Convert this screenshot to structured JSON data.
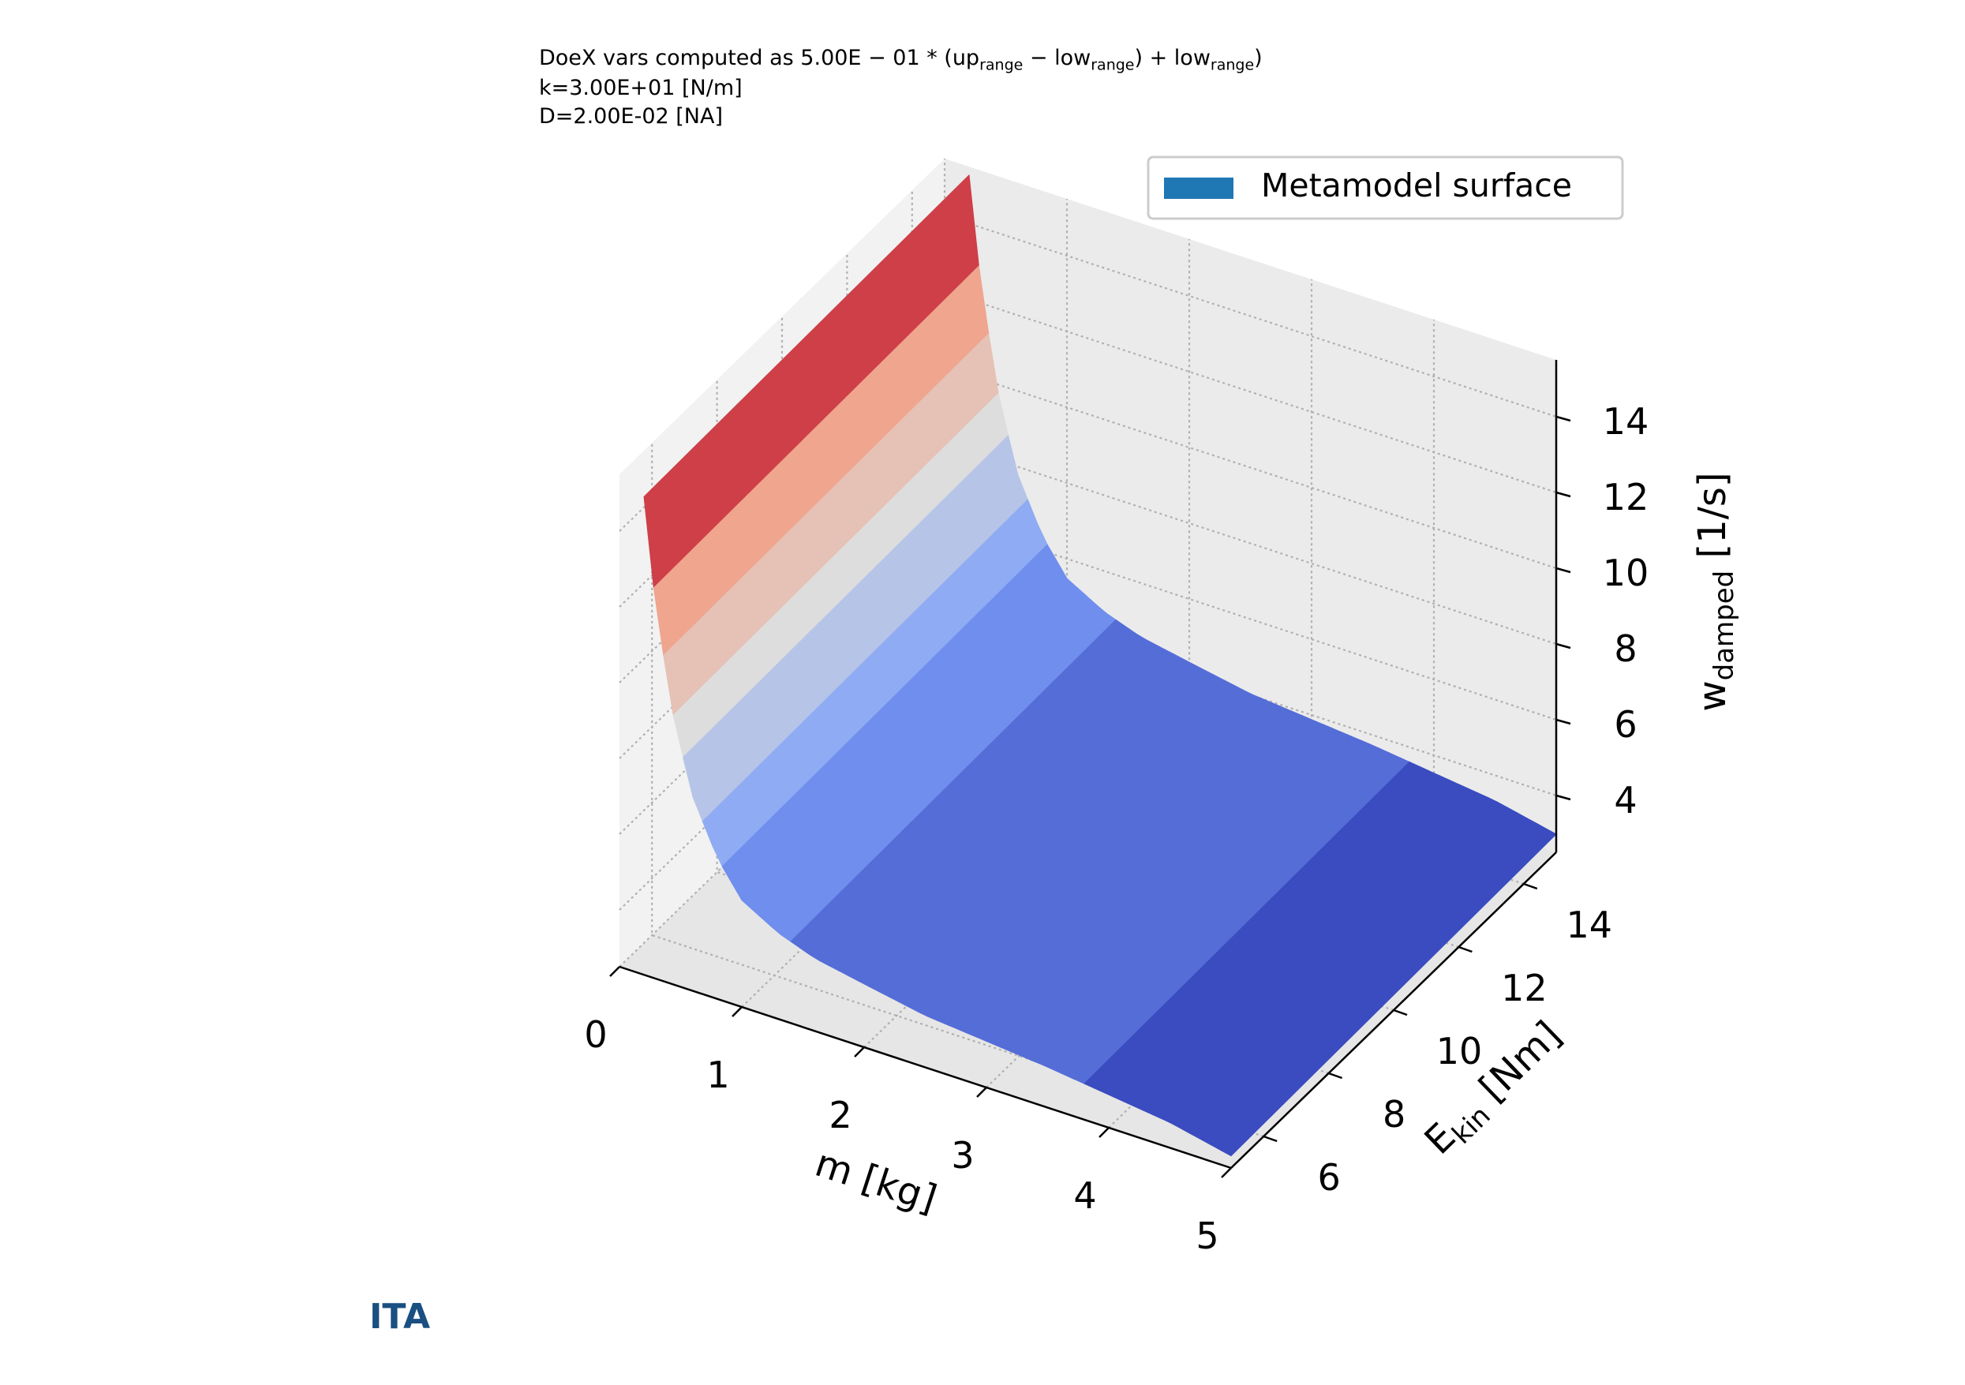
{
  "header": {
    "line1_prefix": "DoeX vars computed as 5.00E − 01 * (up",
    "line1_sub1": "range",
    "line1_mid": " − low",
    "line1_sub2": "range",
    "line1_mid2": ") + low",
    "line1_sub3": "range",
    "line1_end": ")",
    "line2": "k=3.00E+01 [N/m]",
    "line3": "D=2.00E-02 [NA]"
  },
  "logo": "ITA",
  "colors": {
    "legend_patch": "#1f77b4",
    "colormap": "coolwarm",
    "logo": "#1a4f82"
  },
  "chart_data": {
    "type": "surface3d",
    "legend": {
      "entries": [
        "Metamodel surface"
      ],
      "placement": "upper-right"
    },
    "x_axis": {
      "label": "m [kg]",
      "ticks": [
        0,
        1,
        2,
        3,
        4,
        5
      ],
      "range": [
        0,
        5
      ]
    },
    "y_axis": {
      "label_main": "E",
      "label_sub": "kin",
      "label_unit": " [Nm]",
      "ticks": [
        6,
        8,
        10,
        12,
        14
      ],
      "range": [
        5,
        15
      ]
    },
    "z_axis": {
      "label_main": "w",
      "label_sub": "damped",
      "label_unit": " [1/s]",
      "ticks": [
        4,
        6,
        8,
        10,
        12,
        14
      ],
      "range": [
        2.5,
        15.5
      ]
    },
    "surface_profile": {
      "m": [
        0.2,
        0.3,
        0.45,
        0.6,
        0.8,
        1.0,
        1.3,
        1.6,
        2.0,
        2.5,
        3.0,
        3.5,
        4.0,
        4.5,
        5.0
      ],
      "w": [
        15.2,
        12.3,
        9.5,
        7.7,
        6.3,
        5.4,
        4.85,
        4.5,
        4.25,
        3.95,
        3.8,
        3.65,
        3.45,
        3.25,
        2.9
      ]
    },
    "grid": true
  }
}
